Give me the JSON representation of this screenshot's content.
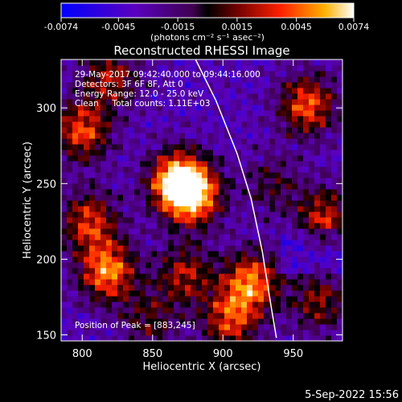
{
  "chart_data": {
    "type": "heatmap",
    "title": "Reconstructed RHESSI Image",
    "xlabel": "Heliocentric X (arcsec)",
    "ylabel": "Heliocentric Y (arcsec)",
    "xlim": [
      785,
      985
    ],
    "ylim": [
      146,
      332
    ],
    "x_ticks": [
      800,
      850,
      900,
      950
    ],
    "y_ticks": [
      150,
      200,
      250,
      300
    ],
    "colorbar": {
      "range": [
        -0.0074,
        0.0074
      ],
      "tick_values": [
        -0.0074,
        -0.0045,
        -0.0015,
        0.0015,
        0.0045,
        0.0074
      ],
      "tick_labels": [
        "-0.0074",
        "-0.0045",
        "-0.0015",
        "0.0015",
        "0.0045",
        "0.0074"
      ],
      "unit_label": "(photons cm⁻² s⁻¹ asec⁻²)"
    },
    "info_lines": [
      "29-May-2017 09:42:40.000 to 09:44:16.000",
      "Detectors: 3F 6F 8F, Att 0",
      "Energy Range: 12.0 - 25.0 keV",
      "Clean     Total counts: 1.11E+03"
    ],
    "peak_label": "Position of Peak = [883,245]",
    "peak": {
      "x": 883,
      "y": 245
    },
    "sources": [
      {
        "x": 868,
        "y": 251,
        "amp": 1.0
      },
      {
        "x": 880,
        "y": 242,
        "amp": 0.7
      },
      {
        "x": 818,
        "y": 192,
        "amp": 0.78
      },
      {
        "x": 805,
        "y": 225,
        "amp": 0.6
      },
      {
        "x": 800,
        "y": 285,
        "amp": 0.65
      },
      {
        "x": 820,
        "y": 320,
        "amp": 0.5
      },
      {
        "x": 920,
        "y": 185,
        "amp": 0.75
      },
      {
        "x": 905,
        "y": 160,
        "amp": 0.6
      },
      {
        "x": 873,
        "y": 190,
        "amp": 0.5
      },
      {
        "x": 960,
        "y": 302,
        "amp": 0.68
      },
      {
        "x": 972,
        "y": 228,
        "amp": 0.55
      },
      {
        "x": 968,
        "y": 172,
        "amp": 0.45
      },
      {
        "x": 935,
        "y": 250,
        "amp": 0.3
      },
      {
        "x": 848,
        "y": 160,
        "amp": 0.35
      }
    ],
    "limb_curve": [
      [
        880,
        333
      ],
      [
        895,
        305
      ],
      [
        910,
        270
      ],
      [
        920,
        240
      ],
      [
        928,
        205
      ],
      [
        934,
        170
      ],
      [
        938,
        148
      ]
    ]
  },
  "timestamp": "5-Sep-2022 15:56"
}
